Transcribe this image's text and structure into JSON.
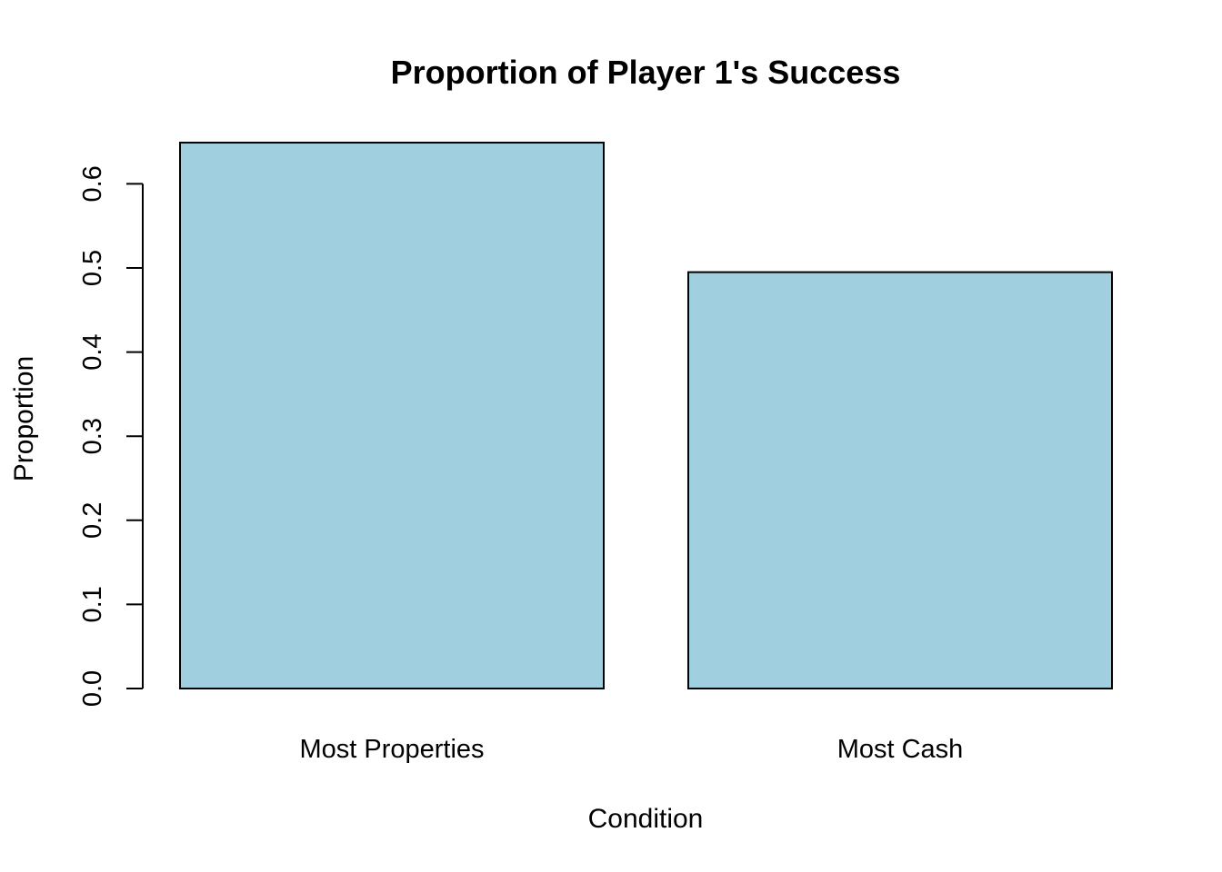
{
  "chart_data": {
    "type": "bar",
    "title": "Proportion of Player 1's Success",
    "xlabel": "Condition",
    "ylabel": "Proportion",
    "categories": [
      "Most Properties",
      "Most Cash"
    ],
    "values": [
      0.649,
      0.495
    ],
    "ylim": [
      0,
      0.649
    ],
    "yticks": [
      0.0,
      0.1,
      0.2,
      0.3,
      0.4,
      0.5,
      0.6
    ],
    "ytick_labels": [
      "0.0",
      "0.1",
      "0.2",
      "0.3",
      "0.4",
      "0.5",
      "0.6"
    ],
    "grid": false,
    "legend": "none",
    "bar_color": "#a0cfe0",
    "bar_border_color": "#000000"
  }
}
